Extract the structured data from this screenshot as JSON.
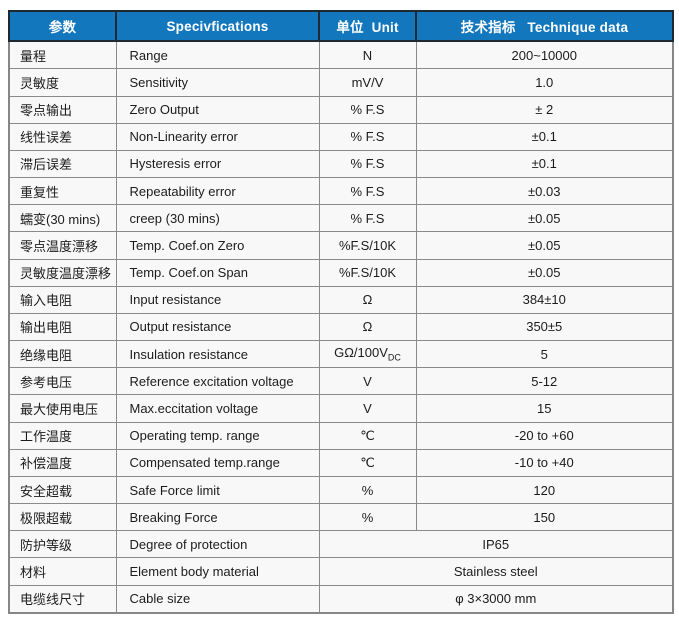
{
  "table": {
    "headers": {
      "param": "参数",
      "spec": "Specivfications",
      "unit": "单位  Unit",
      "value": "技术指标   Technique data"
    },
    "rows": [
      {
        "param": "量程",
        "spec": "Range",
        "unit": "N",
        "value": "200~10000"
      },
      {
        "param": "灵敏度",
        "spec": "Sensitivity",
        "unit": "mV/V",
        "value": "1.0"
      },
      {
        "param": "零点输出",
        "spec": "Zero Output",
        "unit": "% F.S",
        "value": "± 2"
      },
      {
        "param": "线性误差",
        "spec": "Non-Linearity error",
        "unit": "% F.S",
        "value": "±0.1"
      },
      {
        "param": "滞后误差",
        "spec": "Hysteresis error",
        "unit": "% F.S",
        "value": "±0.1"
      },
      {
        "param": "重复性",
        "spec": "Repeatability error",
        "unit": "% F.S",
        "value": "±0.03"
      },
      {
        "param": "蠕变(30 mins)",
        "spec": "creep (30 mins)",
        "unit": "% F.S",
        "value": "±0.05"
      },
      {
        "param": "零点温度漂移",
        "spec": "Temp. Coef.on Zero",
        "unit": "%F.S/10K",
        "value": "±0.05"
      },
      {
        "param": "灵敏度温度漂移",
        "spec": "Temp. Coef.on Span",
        "unit": "%F.S/10K",
        "value": "±0.05"
      },
      {
        "param": "输入电阻",
        "spec": "Input resistance",
        "unit": "Ω",
        "value": "384±10"
      },
      {
        "param": "输出电阻",
        "spec": "Output resistance",
        "unit": "Ω",
        "value": "350±5"
      },
      {
        "param": "绝缘电阻",
        "spec": "Insulation resistance",
        "unit": "GΩ/100V",
        "unit_sub": "DC",
        "value": "5"
      },
      {
        "param": "参考电压",
        "spec": "Reference excitation voltage",
        "unit": "V",
        "value": "5-12"
      },
      {
        "param": "最大使用电压",
        "spec": "Max.eccitation voltage",
        "unit": "V",
        "value": "15"
      },
      {
        "param": "工作温度",
        "spec": "Operating temp. range",
        "unit": "℃",
        "value": "-20 to +60"
      },
      {
        "param": "补偿温度",
        "spec": "Compensated temp.range",
        "unit": "℃",
        "value": "-10 to +40"
      },
      {
        "param": "安全超载",
        "spec": "Safe Force limit",
        "unit": "%",
        "value": "120"
      },
      {
        "param": "极限超载",
        "spec": "Breaking Force",
        "unit": "%",
        "value": "150"
      },
      {
        "param": "防护等级",
        "spec": "Degree of protection",
        "merged": true,
        "value": "IP65"
      },
      {
        "param": "材料",
        "spec": "Element body material",
        "merged": true,
        "value": "Stainless steel"
      },
      {
        "param": "电缆线尺寸",
        "spec": "Cable size",
        "merged": true,
        "value": "φ 3×3000 mm"
      }
    ]
  }
}
